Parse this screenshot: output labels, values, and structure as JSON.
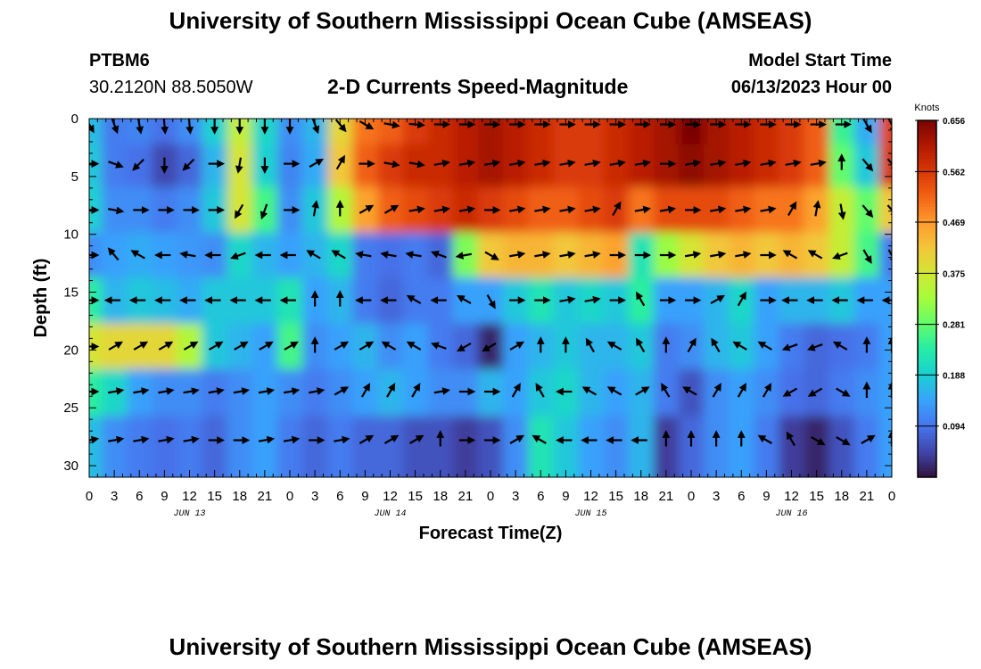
{
  "header": {
    "title": "University of Southern Mississippi Ocean Cube (AMSEAS)",
    "station_id": "PTBM6",
    "station_coords": "30.2120N  88.5050W",
    "chart_subtitle": "2-D Currents Speed-Magnitude",
    "model_start_label": "Model Start Time",
    "model_start_value": "06/13/2023 Hour 00"
  },
  "footer": {
    "title": "University of Southern Mississippi Ocean Cube (AMSEAS)"
  },
  "colors": {
    "background": "#ffffff",
    "text": "#000000",
    "arrow": "#000000"
  },
  "chart_data": {
    "type": "heatmap",
    "title": "2-D Currents Speed-Magnitude",
    "xlabel": "Forecast Time(Z)",
    "ylabel": "Depth (ft)",
    "xlim": [
      0,
      96
    ],
    "ylim": [
      31,
      0
    ],
    "x_ticks": [
      0,
      3,
      6,
      9,
      12,
      15,
      18,
      21,
      24,
      27,
      30,
      33,
      36,
      39,
      42,
      45,
      48,
      51,
      54,
      57,
      60,
      63,
      66,
      69,
      72,
      75,
      78,
      81,
      84,
      87,
      90,
      93,
      96
    ],
    "x_tick_labels": [
      "0",
      "3",
      "6",
      "9",
      "12",
      "15",
      "18",
      "21",
      "0",
      "3",
      "6",
      "9",
      "12",
      "15",
      "18",
      "21",
      "0",
      "3",
      "6",
      "9",
      "12",
      "15",
      "18",
      "21",
      "0",
      "3",
      "6",
      "9",
      "12",
      "15",
      "18",
      "21",
      "0"
    ],
    "day_labels": [
      {
        "label": "JUN 13",
        "at_hour": 12
      },
      {
        "label": "JUN 14",
        "at_hour": 36
      },
      {
        "label": "JUN 15",
        "at_hour": 60
      },
      {
        "label": "JUN 16",
        "at_hour": 84
      }
    ],
    "y_ticks": [
      0,
      5,
      10,
      15,
      20,
      25,
      30
    ],
    "y_tick_labels": [
      "0",
      "5",
      "10",
      "15",
      "20",
      "25",
      "30"
    ],
    "colorbar": {
      "label": "Knots",
      "min": 0,
      "max": 0.656,
      "tick_values": [
        0.094,
        0.188,
        0.281,
        0.375,
        0.469,
        0.562,
        0.656
      ],
      "tick_labels": [
        "0.094",
        "0.188",
        "0.281",
        "0.375",
        "0.469",
        "0.562",
        "0.656"
      ],
      "colormap": [
        "#30123b",
        "#4145ab",
        "#4675ed",
        "#39a2fc",
        "#1bcfd4",
        "#24eca6",
        "#61fc6c",
        "#a4fc3b",
        "#d1e834",
        "#f3c63a",
        "#fe9b2d",
        "#f36315",
        "#d93806",
        "#b11901",
        "#7a0402"
      ]
    },
    "depth_rows": [
      0.5,
      3.9,
      7.9,
      11.8,
      15.7,
      19.7,
      23.6,
      27.8
    ],
    "time_columns": [
      0,
      3,
      6,
      9,
      12,
      15,
      18,
      21,
      24,
      27,
      30,
      33,
      36,
      39,
      42,
      45,
      48,
      51,
      54,
      57,
      60,
      63,
      66,
      69,
      72,
      75,
      78,
      81,
      84,
      87,
      90,
      93,
      96
    ],
    "speed_knots": [
      [
        0.17,
        0.1,
        0.11,
        0.09,
        0.12,
        0.19,
        0.36,
        0.2,
        0.12,
        0.16,
        0.4,
        0.5,
        0.52,
        0.56,
        0.58,
        0.6,
        0.62,
        0.6,
        0.58,
        0.56,
        0.56,
        0.58,
        0.6,
        0.62,
        0.66,
        0.62,
        0.6,
        0.58,
        0.56,
        0.52,
        0.25,
        0.15,
        0.55
      ],
      [
        0.18,
        0.1,
        0.09,
        0.05,
        0.08,
        0.16,
        0.38,
        0.19,
        0.11,
        0.15,
        0.42,
        0.52,
        0.56,
        0.58,
        0.58,
        0.6,
        0.62,
        0.6,
        0.58,
        0.56,
        0.56,
        0.58,
        0.6,
        0.62,
        0.64,
        0.62,
        0.6,
        0.58,
        0.56,
        0.52,
        0.28,
        0.18,
        0.56
      ],
      [
        0.19,
        0.12,
        0.12,
        0.1,
        0.12,
        0.18,
        0.38,
        0.26,
        0.12,
        0.18,
        0.34,
        0.46,
        0.52,
        0.54,
        0.56,
        0.58,
        0.56,
        0.54,
        0.52,
        0.52,
        0.54,
        0.56,
        0.5,
        0.54,
        0.54,
        0.54,
        0.52,
        0.5,
        0.5,
        0.46,
        0.36,
        0.28,
        0.42
      ],
      [
        0.12,
        0.14,
        0.15,
        0.14,
        0.13,
        0.12,
        0.2,
        0.16,
        0.14,
        0.16,
        0.2,
        0.1,
        0.09,
        0.1,
        0.08,
        0.3,
        0.42,
        0.44,
        0.44,
        0.42,
        0.44,
        0.46,
        0.22,
        0.32,
        0.38,
        0.42,
        0.44,
        0.42,
        0.44,
        0.42,
        0.36,
        0.26,
        0.1
      ],
      [
        0.24,
        0.16,
        0.18,
        0.17,
        0.15,
        0.18,
        0.18,
        0.18,
        0.22,
        0.14,
        0.16,
        0.1,
        0.08,
        0.1,
        0.1,
        0.14,
        0.14,
        0.18,
        0.22,
        0.18,
        0.2,
        0.18,
        0.24,
        0.14,
        0.14,
        0.16,
        0.2,
        0.14,
        0.16,
        0.16,
        0.18,
        0.14,
        0.14
      ],
      [
        0.38,
        0.4,
        0.4,
        0.4,
        0.34,
        0.18,
        0.16,
        0.14,
        0.26,
        0.12,
        0.14,
        0.16,
        0.12,
        0.14,
        0.1,
        0.08,
        0.02,
        0.14,
        0.16,
        0.18,
        0.16,
        0.16,
        0.18,
        0.1,
        0.12,
        0.16,
        0.18,
        0.14,
        0.1,
        0.08,
        0.09,
        0.1,
        0.14
      ],
      [
        0.24,
        0.2,
        0.14,
        0.12,
        0.12,
        0.1,
        0.12,
        0.14,
        0.12,
        0.1,
        0.12,
        0.14,
        0.16,
        0.14,
        0.12,
        0.12,
        0.16,
        0.14,
        0.18,
        0.2,
        0.16,
        0.14,
        0.16,
        0.1,
        0.06,
        0.12,
        0.14,
        0.12,
        0.09,
        0.08,
        0.1,
        0.12,
        0.14
      ],
      [
        0.17,
        0.12,
        0.1,
        0.09,
        0.1,
        0.08,
        0.12,
        0.14,
        0.1,
        0.08,
        0.1,
        0.08,
        0.08,
        0.06,
        0.06,
        0.04,
        0.06,
        0.12,
        0.22,
        0.18,
        0.14,
        0.12,
        0.16,
        0.04,
        0.08,
        0.12,
        0.14,
        0.1,
        0.04,
        0.02,
        0.06,
        0.1,
        0.14
      ]
    ],
    "direction_deg": [
      [
        150,
        160,
        170,
        175,
        175,
        180,
        180,
        180,
        180,
        160,
        140,
        120,
        100,
        95,
        90,
        90,
        90,
        90,
        90,
        90,
        90,
        90,
        90,
        90,
        90,
        90,
        90,
        90,
        90,
        90,
        90,
        150,
        150
      ],
      [
        90,
        110,
        225,
        180,
        225,
        90,
        190,
        180,
        90,
        60,
        30,
        90,
        100,
        100,
        80,
        80,
        80,
        80,
        80,
        80,
        80,
        80,
        80,
        90,
        80,
        80,
        80,
        80,
        80,
        80,
        0,
        140,
        140
      ],
      [
        90,
        100,
        90,
        90,
        90,
        90,
        210,
        200,
        90,
        10,
        0,
        60,
        60,
        80,
        80,
        80,
        90,
        80,
        80,
        80,
        80,
        30,
        80,
        80,
        90,
        80,
        80,
        80,
        30,
        10,
        170,
        140,
        140
      ],
      [
        90,
        320,
        300,
        270,
        280,
        270,
        250,
        270,
        270,
        300,
        300,
        280,
        280,
        280,
        290,
        260,
        120,
        80,
        80,
        80,
        80,
        90,
        90,
        90,
        80,
        80,
        80,
        90,
        300,
        300,
        250,
        150,
        150
      ],
      [
        90,
        270,
        270,
        270,
        270,
        270,
        270,
        270,
        270,
        0,
        0,
        270,
        270,
        300,
        270,
        300,
        150,
        90,
        90,
        80,
        80,
        90,
        330,
        90,
        90,
        60,
        30,
        90,
        270,
        270,
        270,
        270,
        270
      ],
      [
        90,
        60,
        60,
        60,
        60,
        60,
        60,
        60,
        60,
        0,
        60,
        60,
        300,
        300,
        290,
        240,
        240,
        60,
        0,
        0,
        330,
        300,
        330,
        0,
        30,
        330,
        300,
        300,
        250,
        250,
        300,
        0,
        0
      ],
      [
        90,
        80,
        80,
        80,
        80,
        80,
        80,
        80,
        80,
        80,
        60,
        30,
        30,
        30,
        80,
        90,
        90,
        30,
        330,
        270,
        300,
        300,
        60,
        330,
        300,
        30,
        30,
        30,
        240,
        240,
        120,
        0,
        0
      ],
      [
        80,
        80,
        80,
        80,
        80,
        90,
        90,
        80,
        80,
        90,
        80,
        60,
        60,
        60,
        0,
        90,
        90,
        60,
        300,
        270,
        270,
        270,
        270,
        0,
        0,
        0,
        0,
        300,
        330,
        120,
        120,
        60,
        0
      ]
    ]
  }
}
